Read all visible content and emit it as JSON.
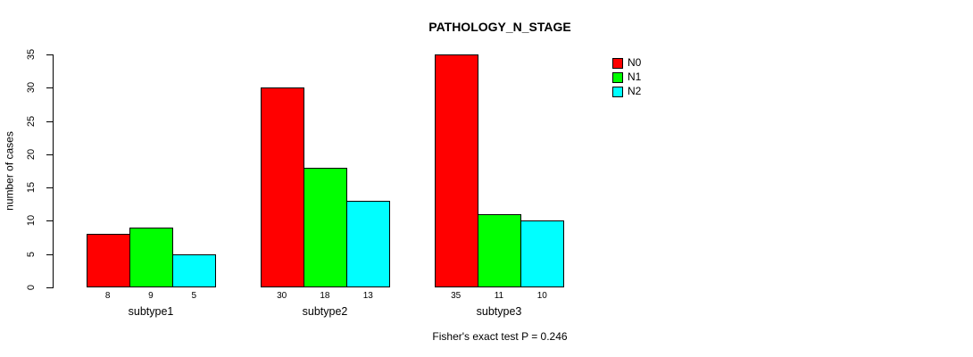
{
  "chart_data": {
    "type": "bar",
    "title": "PATHOLOGY_N_STAGE",
    "ylabel": "number of cases",
    "xlabel": "",
    "categories": [
      "subtype1",
      "subtype2",
      "subtype3"
    ],
    "series": [
      {
        "name": "N0",
        "color": "#ff0000",
        "values": [
          8,
          30,
          35
        ]
      },
      {
        "name": "N1",
        "color": "#00ff00",
        "values": [
          9,
          18,
          11
        ]
      },
      {
        "name": "N2",
        "color": "#00ffff",
        "values": [
          5,
          13,
          10
        ]
      }
    ],
    "bar_value_labels": [
      [
        8,
        9,
        5
      ],
      [
        30,
        18,
        13
      ],
      [
        35,
        11,
        10
      ]
    ],
    "yticks": [
      0,
      5,
      10,
      15,
      20,
      25,
      30,
      35
    ],
    "ylim": [
      0,
      35
    ],
    "grid": false,
    "legend_position": "top-right",
    "legend": [
      {
        "label": "N0",
        "color": "#ff0000"
      },
      {
        "label": "N1",
        "color": "#00ff00"
      },
      {
        "label": "N2",
        "color": "#00ffff"
      }
    ],
    "annotation": "Fisher's exact test P = 0.246"
  },
  "colors": {
    "background": "#ffffff",
    "axis": "#000000",
    "bar_border": "#000000"
  }
}
